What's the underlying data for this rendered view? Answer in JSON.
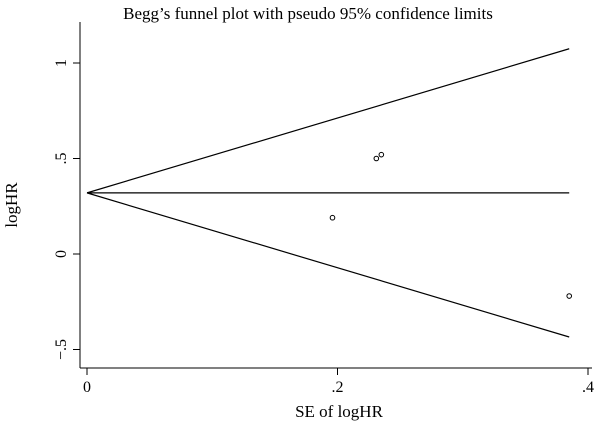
{
  "chart_data": {
    "type": "scatter",
    "title": "Begg’s funnel plot with pseudo 95% confidence limits",
    "xlabel": "SE of logHR",
    "ylabel": "logHR",
    "xlim": [
      0,
      0.4
    ],
    "ylim": [
      -0.5,
      1.0
    ],
    "x_ticks": [
      {
        "value": 0,
        "label": "0"
      },
      {
        "value": 0.2,
        "label": ".2"
      },
      {
        "value": 0.4,
        "label": ".4"
      }
    ],
    "y_ticks": [
      {
        "value": -0.5,
        "label": "−.5"
      },
      {
        "value": 0,
        "label": "0"
      },
      {
        "value": 0.5,
        "label": ".5"
      },
      {
        "value": 1,
        "label": "1"
      }
    ],
    "points": [
      {
        "x": 0.196,
        "y": 0.19
      },
      {
        "x": 0.231,
        "y": 0.5
      },
      {
        "x": 0.235,
        "y": 0.52
      },
      {
        "x": 0.385,
        "y": -0.22
      }
    ],
    "pooled_estimate": 0.32,
    "se_max": 0.385,
    "grid": false,
    "legend": "none"
  }
}
